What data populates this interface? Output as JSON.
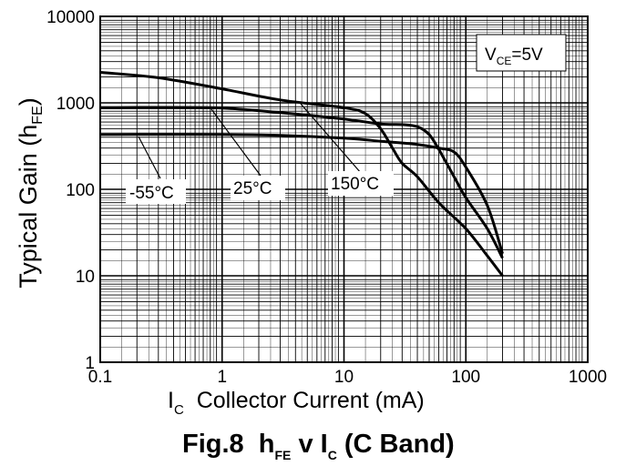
{
  "chart_data": {
    "type": "line",
    "x_scale": "log",
    "y_scale": "log",
    "xlim": [
      0.1,
      1000
    ],
    "ylim": [
      1,
      10000
    ],
    "grid": true,
    "x_ticks": [
      "0.1",
      "1",
      "10",
      "100",
      "1000"
    ],
    "y_ticks": [
      "1",
      "10",
      "100",
      "1000",
      "10000"
    ],
    "ylabel": {
      "main": "Typical Gain (h",
      "sub": "FE",
      "tail": ")"
    },
    "xlabel": {
      "main": "I",
      "sub": "C",
      "tail": "  Collector Current (mA)"
    },
    "caption": {
      "a": "Fig.8  h",
      "a_sub": "FE",
      "b": " v I",
      "b_sub": "C",
      "c": " (C Band)"
    },
    "annotation": {
      "main": "V",
      "sub": "CE",
      "tail": "=5V"
    },
    "series": [
      {
        "name": "-55°C",
        "x": [
          0.1,
          0.3,
          1,
          3,
          10,
          20,
          40,
          60,
          80,
          100,
          150,
          200
        ],
        "y": [
          430,
          432,
          430,
          420,
          390,
          360,
          330,
          300,
          270,
          180,
          65,
          18
        ]
      },
      {
        "name": "25°C",
        "x": [
          0.1,
          0.3,
          1,
          3,
          10,
          20,
          30,
          40,
          50,
          60,
          80,
          100,
          150,
          200
        ],
        "y": [
          880,
          885,
          870,
          770,
          650,
          570,
          560,
          530,
          430,
          290,
          140,
          80,
          35,
          16
        ]
      },
      {
        "name": "150°C",
        "x": [
          0.1,
          0.3,
          1,
          3,
          10,
          15,
          20,
          25,
          30,
          40,
          60,
          100,
          150,
          200
        ],
        "y": [
          2250,
          1950,
          1450,
          1080,
          880,
          750,
          500,
          300,
          200,
          140,
          70,
          35,
          17,
          10
        ]
      }
    ]
  }
}
